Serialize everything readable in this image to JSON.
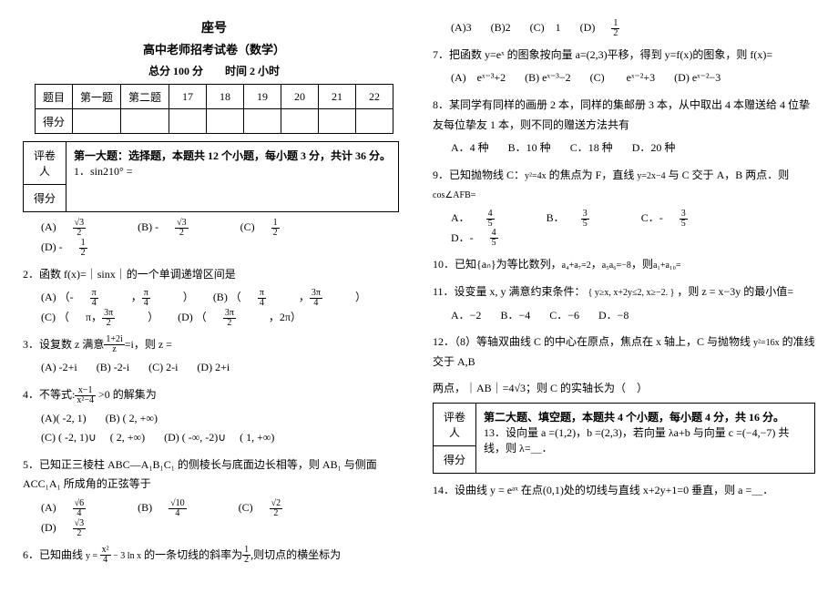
{
  "header": {
    "seat": "座号",
    "title": "高中老师招考试卷（数学）",
    "meta": "总分 100 分　　时间 2 小时"
  },
  "scoreTable": {
    "row1": [
      "题目",
      "第一题",
      "第二题",
      "17",
      "18",
      "19",
      "20",
      "21",
      "22"
    ],
    "row2": [
      "得分",
      "",
      "",
      "",
      "",
      "",
      "",
      "",
      ""
    ]
  },
  "section1": {
    "reviewer": "评卷人",
    "score": "得分",
    "heading": "第一大题：选择题，本题共 12 个小题，每小题 3 分，共计 36 分。",
    "q1": "1．sin210° ="
  },
  "q1opts": {
    "a": "(A)",
    "b": "(B) -",
    "c": "(C)",
    "d": "(D) -"
  },
  "q2": {
    "stem": "2．函数 f(x)=｜sinx｜的一个单调递增区间是",
    "a": "(A)  （-",
    "b": "(B)  （",
    "c": "(C)  （",
    "d": "(D)  （"
  },
  "q3": {
    "stem": "3．设复数 z 满意",
    "tail": "=i，则 z =",
    "a": "(A) -2+i",
    "b": "(B) -2-i",
    "c": "(C) 2-i",
    "d": "(D) 2+i"
  },
  "q4": {
    "stem": "4．不等式:",
    "tail": " >0 的解集为",
    "a": "(A)( -2, 1)",
    "b": "(B) ( 2, +∞)",
    "c": "(C) ( -2, 1)∪ 　( 2, +∞)",
    "d": "(D) ( -∞, -2)∪ 　( 1, +∞)"
  },
  "q5": {
    "stem": "5．已知正三棱柱 ABC—A₁B₁C₁ 的侧棱长与底面边长相等，则 AB₁ 与侧面 ACC₁A₁ 所成角的正弦等于",
    "a": "(A)",
    "b": "(B)",
    "c": "(C)",
    "d": "(D)"
  },
  "q6": {
    "stem": "6．已知曲线",
    "mid": "的一条切线的斜率为",
    "tail": "则切点的横坐标为",
    "a": "(A)3",
    "b": "(B)2",
    "c": "(C)　1",
    "d": "(D)"
  },
  "q7": {
    "stem": "7．把函数 y=eˣ 的图象按向量 a=(2,3)平移，得到 y=f(x)的图象，则 f(x)=",
    "a": "(A)　eˣ⁻³+2",
    "b": "(B) eˣ⁻³−2",
    "c": "(C)　　eˣ⁻²+3",
    "d": "(D) eˣ⁻²−3"
  },
  "q8": {
    "stem": "8．某同学有同样的画册 2 本，同样的集邮册 3 本，从中取出 4 本赠送给 4 位挚友每位挚友 1 本，则不同的赠送方法共有",
    "a": "A．4 种",
    "b": "B．10 种",
    "c": "C．18 种",
    "d": "D．20 种"
  },
  "q9": {
    "stem": "9．已知抛物线 C：",
    "mid": "的焦点为 F，直线",
    "tail": "与 C 交于 A，B 两点．则",
    "sub": "cos∠AFB=",
    "a": "A．",
    "b": "B．",
    "c": "C．-",
    "d": "D．-"
  },
  "q10": {
    "stem": "10．已知{aₙ}为等比数列，",
    "mid": "，",
    "tail": "，则"
  },
  "q11": {
    "stem": "11．设变量 x, y 满意约束条件：",
    "tail": "，则 z = x−3y 的最小值=",
    "a": "A．−2",
    "b": "B．−4",
    "c": "C．−6",
    "d": "D．−8"
  },
  "q12": {
    "stem": "12．（8）等轴双曲线 C 的中心在原点，焦点在 x 轴上，C 与抛物线",
    "tail": "的准线交于 A,B",
    "line2": "两点，｜AB｜=4√3；则 C 的实轴长为（　）"
  },
  "section2": {
    "reviewer": "评卷人",
    "score": "得分",
    "heading": "第二大题、填空题，本题共 4 个小题，每小题 4 分，共 16 分。",
    "q13": "13．设向量 a =(1,2)，b =(2,3)，若向量 λa+b 与向量 c =(−4,−7) 共线，则 λ=＿．",
    "q14": "14．设曲线 y = eᵃˣ 在点(0,1)处的切线与直线 x+2y+1=0 垂直，则 a =＿．"
  }
}
